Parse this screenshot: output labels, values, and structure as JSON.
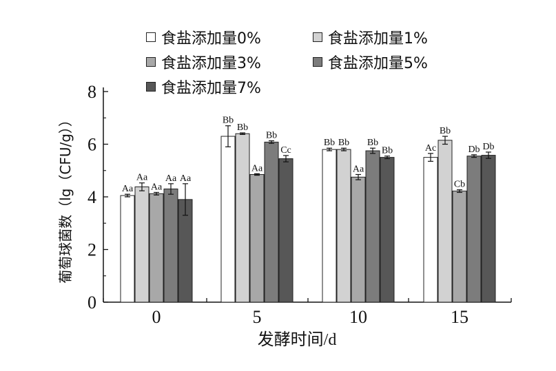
{
  "chart_data": {
    "type": "bar",
    "title": "",
    "xlabel": "发酵时间/d",
    "ylabel": "葡萄球菌数（lg（CFU/g））",
    "categories": [
      "0",
      "5",
      "10",
      "15"
    ],
    "ylim": [
      0,
      8
    ],
    "yticks": [
      0,
      2,
      4,
      6,
      8
    ],
    "grid": false,
    "legend_position": "top",
    "series": [
      {
        "name": "食盐添加量0%",
        "color": "#ffffff",
        "values": [
          4.05,
          6.3,
          5.8,
          5.5
        ],
        "errors": [
          0.05,
          0.4,
          0.05,
          0.15
        ],
        "labels": [
          "Aa",
          "Bb",
          "Bb",
          "Ac"
        ]
      },
      {
        "name": "食盐添加量1%",
        "color": "#d2d2d2",
        "values": [
          4.38,
          6.4,
          5.8,
          6.15
        ],
        "errors": [
          0.15,
          0.03,
          0.05,
          0.15
        ],
        "labels": [
          "Aa",
          "Bb",
          "Bb",
          "Bb"
        ]
      },
      {
        "name": "食盐添加量3%",
        "color": "#a8a8a8",
        "values": [
          4.12,
          4.85,
          4.75,
          4.22
        ],
        "errors": [
          0.05,
          0.03,
          0.1,
          0.05
        ],
        "labels": [
          "Aa",
          "Aa",
          "Aa",
          "Cb"
        ]
      },
      {
        "name": "食盐添加量5%",
        "color": "#7c7c7c",
        "values": [
          4.3,
          6.08,
          5.75,
          5.55
        ],
        "errors": [
          0.2,
          0.05,
          0.1,
          0.05
        ],
        "labels": [
          "Aa",
          "Bb",
          "Bb",
          "Db"
        ]
      },
      {
        "name": "食盐添加量7%",
        "color": "#575757",
        "values": [
          3.9,
          5.45,
          5.5,
          5.58
        ],
        "errors": [
          0.6,
          0.12,
          0.05,
          0.12
        ],
        "labels": [
          "Aa",
          "Cc",
          "Bb",
          "Db"
        ]
      }
    ]
  }
}
